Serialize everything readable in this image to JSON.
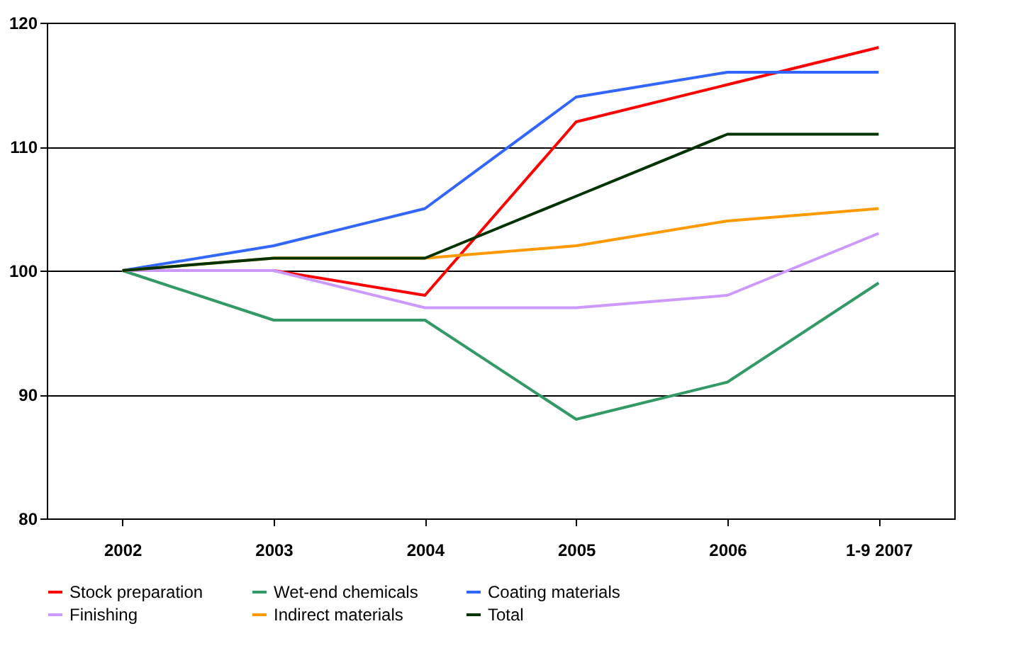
{
  "chart_data": {
    "type": "line",
    "categories": [
      "2002",
      "2003",
      "2004",
      "2005",
      "2006",
      "1-9 2007"
    ],
    "series": [
      {
        "name": "Stock preparation",
        "color": "#ff0000",
        "values": [
          100,
          100,
          98,
          112,
          115,
          118
        ]
      },
      {
        "name": "Wet-end chemicals",
        "color": "#339966",
        "values": [
          100,
          96,
          96,
          88,
          91,
          99
        ]
      },
      {
        "name": "Coating materials",
        "color": "#3366ff",
        "values": [
          100,
          102,
          105,
          114,
          116,
          116
        ]
      },
      {
        "name": "Finishing",
        "color": "#cc99ff",
        "values": [
          100,
          100,
          97,
          97,
          98,
          103
        ]
      },
      {
        "name": "Indirect materials",
        "color": "#ff9900",
        "values": [
          100,
          101,
          101,
          102,
          104,
          105
        ]
      },
      {
        "name": "Total",
        "color": "#003300",
        "values": [
          100,
          101,
          101,
          106,
          111,
          111
        ]
      }
    ],
    "ylim": [
      80,
      120
    ],
    "yticks": [
      80,
      90,
      100,
      110,
      120
    ],
    "grid": "y",
    "legend": "bottom",
    "marker": "none",
    "line_style": "solid"
  }
}
